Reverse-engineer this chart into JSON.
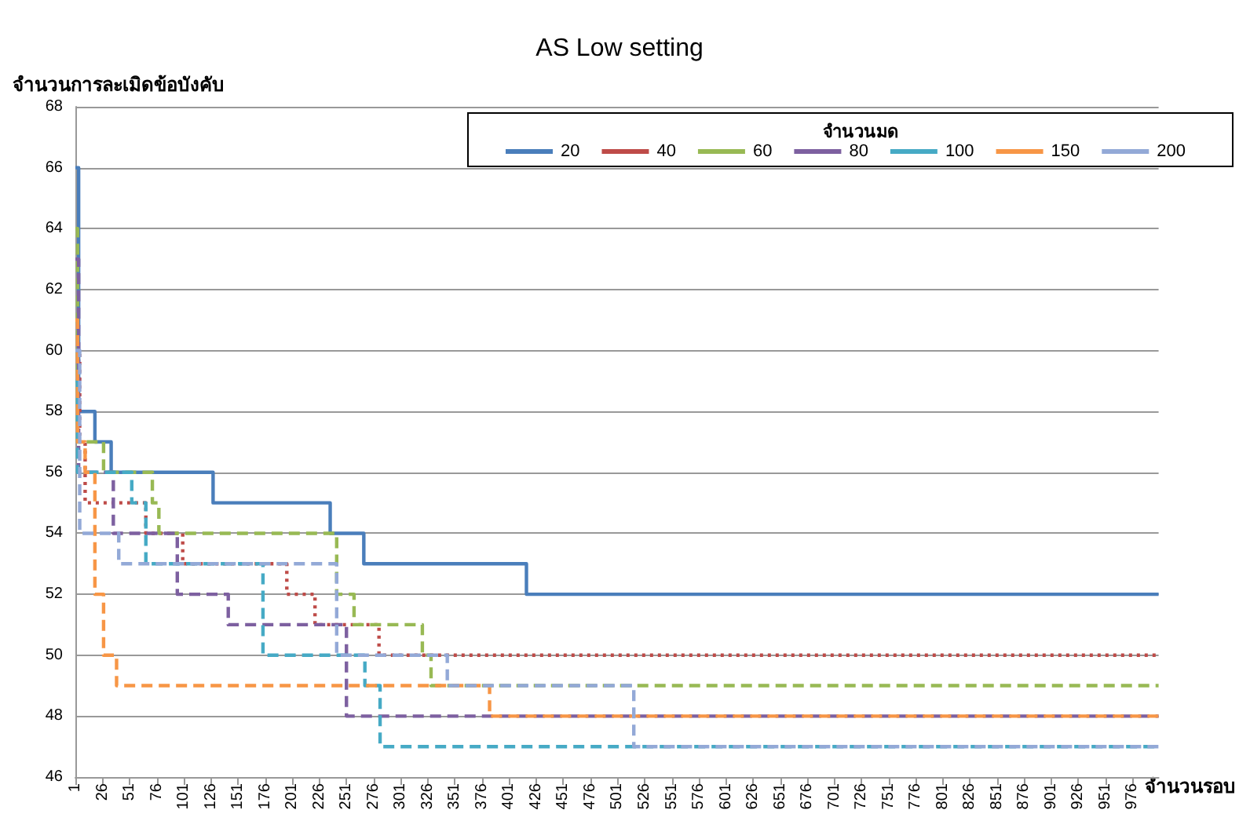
{
  "chart_data": {
    "type": "step",
    "title": "AS Low setting",
    "ylabel": "จำนวนการละเมิดข้อบังคับ",
    "xlabel": "จำนวนรอบ",
    "legend_title": "จำนวนมด",
    "legend": "top right",
    "grid": "y",
    "xlim": [
      1,
      1000
    ],
    "xticks": [
      1,
      26,
      51,
      76,
      101,
      126,
      151,
      176,
      201,
      226,
      251,
      276,
      301,
      326,
      351,
      376,
      401,
      426,
      451,
      476,
      501,
      526,
      551,
      576,
      601,
      626,
      651,
      676,
      701,
      726,
      751,
      776,
      801,
      826,
      851,
      876,
      901,
      926,
      951,
      976
    ],
    "ylim": [
      46,
      68
    ],
    "yticks": [
      46,
      48,
      50,
      52,
      54,
      56,
      58,
      60,
      62,
      64,
      66,
      68
    ],
    "series": [
      {
        "name": "20",
        "color": "#4a7ebb",
        "line_style": "solid",
        "x": [
          1,
          4,
          19,
          34,
          128,
          236,
          267,
          417,
          1000
        ],
        "values": [
          66,
          58,
          57,
          56,
          55,
          54,
          53,
          52,
          52
        ]
      },
      {
        "name": "40",
        "color": "#be4b48",
        "line_style": "dotted",
        "x": [
          1,
          5,
          10,
          66,
          100,
          196,
          222,
          281,
          1000
        ],
        "values": [
          60,
          57,
          55,
          54,
          53,
          52,
          51,
          50,
          50
        ]
      },
      {
        "name": "60",
        "color": "#98b954",
        "line_style": "dashed",
        "x": [
          1,
          3,
          27,
          72,
          78,
          242,
          258,
          321,
          329,
          1000
        ],
        "values": [
          64,
          57,
          56,
          55,
          54,
          52,
          51,
          50,
          49,
          49
        ]
      },
      {
        "name": "80",
        "color": "#7d60a0",
        "line_style": "dashed",
        "x": [
          1,
          4,
          36,
          95,
          142,
          251,
          1000
        ],
        "values": [
          63,
          56,
          54,
          52,
          51,
          48,
          48
        ]
      },
      {
        "name": "100",
        "color": "#46aac5",
        "line_style": "dashed",
        "x": [
          1,
          3,
          53,
          66,
          174,
          268,
          282,
          1000
        ],
        "values": [
          59,
          56,
          55,
          53,
          50,
          49,
          47,
          47
        ]
      },
      {
        "name": "150",
        "color": "#f79646",
        "line_style": "dashed",
        "x": [
          1,
          3,
          10,
          19,
          27,
          39,
          383,
          1000
        ],
        "values": [
          61,
          57,
          56,
          52,
          50,
          49,
          48,
          48
        ]
      },
      {
        "name": "200",
        "color": "#93a9d7",
        "line_style": "dashed",
        "x": [
          1,
          5,
          41,
          242,
          344,
          516,
          1000
        ],
        "values": [
          60,
          54,
          53,
          50,
          49,
          47,
          47
        ]
      }
    ]
  }
}
